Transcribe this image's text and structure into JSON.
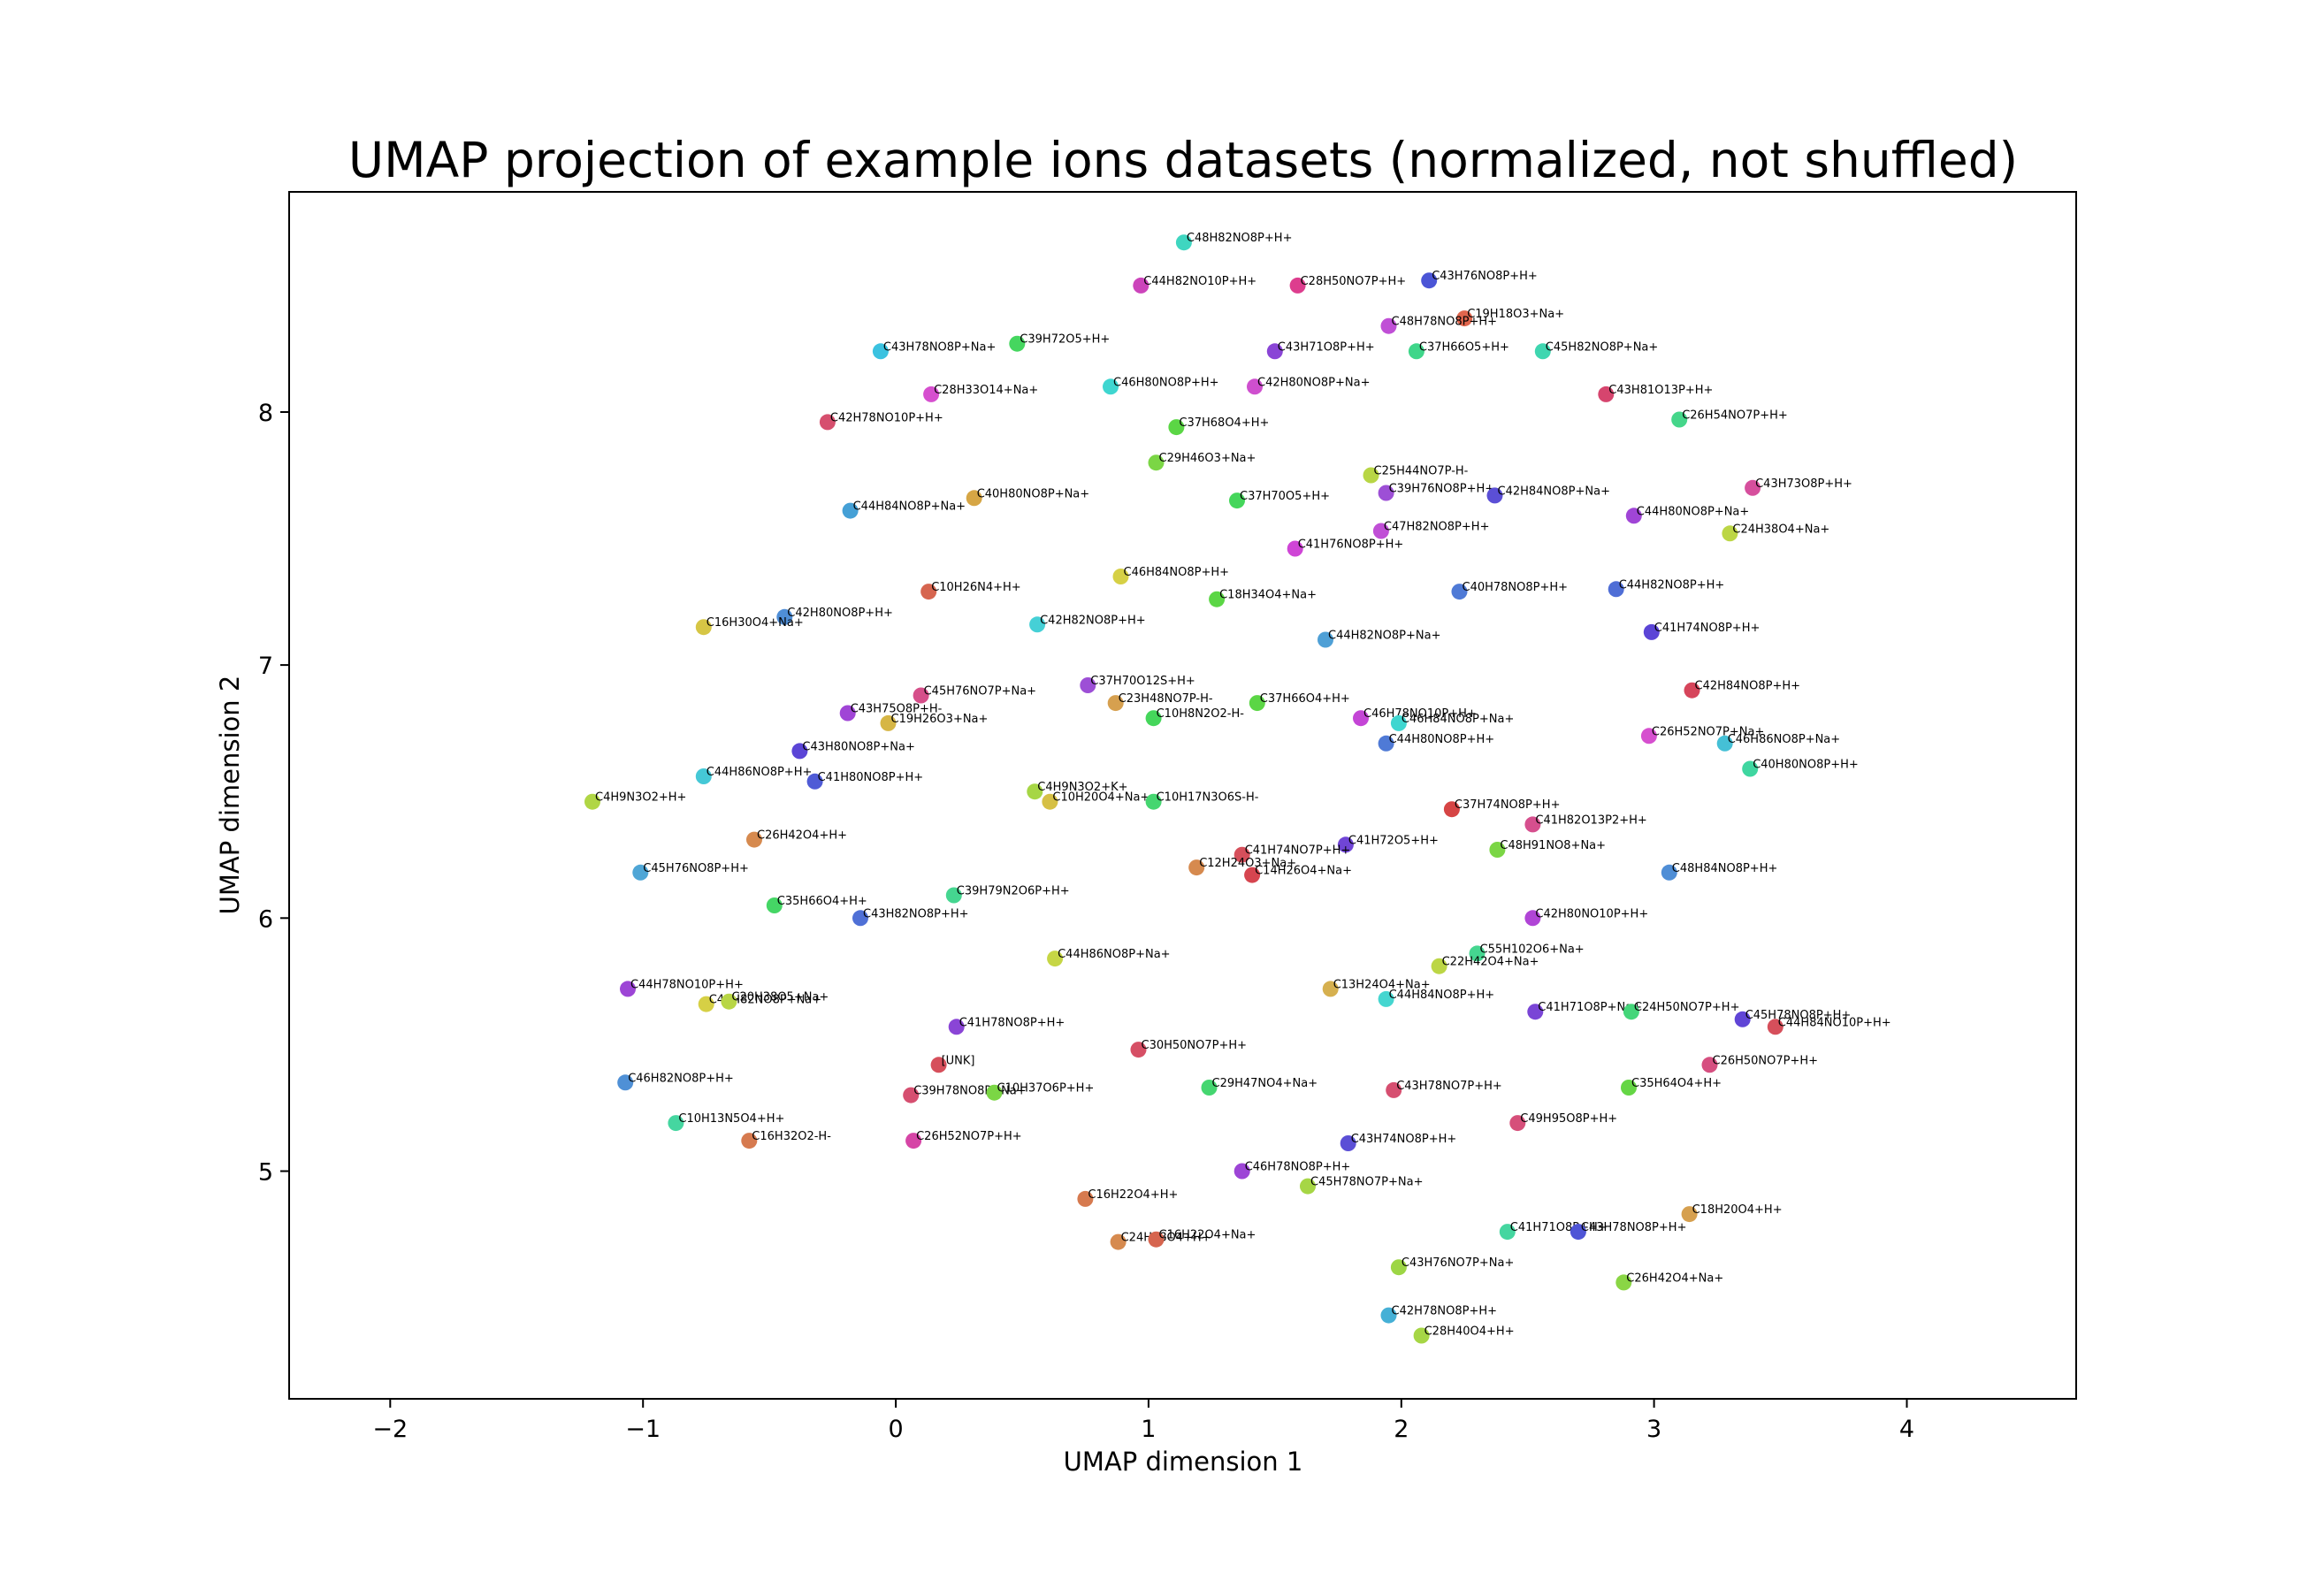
{
  "chart_data": {
    "type": "scatter",
    "title": "UMAP projection of example ions datasets (normalized, not shuffled)",
    "xlabel": "UMAP dimension 1",
    "ylabel": "UMAP dimension 2",
    "xlim": [
      -2.4,
      4.67
    ],
    "ylim": [
      4.1,
      8.87
    ],
    "xticks": [
      -2,
      -1,
      0,
      1,
      2,
      3,
      4
    ],
    "yticks": [
      5,
      6,
      7,
      8
    ],
    "xtick_labels": [
      "−2",
      "−1",
      "0",
      "1",
      "2",
      "3",
      "4"
    ],
    "ytick_labels": [
      "5",
      "6",
      "7",
      "8"
    ],
    "grid": false,
    "legend": "none",
    "points": [
      {
        "x": 1.14,
        "y": 8.67,
        "label": "C48H82NO8P+H+",
        "color": "#3fd6c0"
      },
      {
        "x": 0.97,
        "y": 8.5,
        "label": "C44H82NO10P+H+",
        "color": "#cc44bb"
      },
      {
        "x": 1.59,
        "y": 8.5,
        "label": "C28H50NO7P+H+",
        "color": "#dd3d8e"
      },
      {
        "x": 2.11,
        "y": 8.52,
        "label": "C43H76NO8P+H+",
        "color": "#4b55d6"
      },
      {
        "x": 2.25,
        "y": 8.37,
        "label": "C19H18O3+Na+",
        "color": "#e0664d"
      },
      {
        "x": 1.95,
        "y": 8.34,
        "label": "C48H78NO8P+H+",
        "color": "#c04fd6"
      },
      {
        "x": -0.06,
        "y": 8.24,
        "label": "C43H78NO8P+Na+",
        "color": "#3bc2e0"
      },
      {
        "x": 0.48,
        "y": 8.27,
        "label": "C39H72O5+H+",
        "color": "#45d65f"
      },
      {
        "x": 1.5,
        "y": 8.24,
        "label": "C43H71O8P+H+",
        "color": "#8a45d6"
      },
      {
        "x": 2.06,
        "y": 8.24,
        "label": "C37H66O5+H+",
        "color": "#3fd68a"
      },
      {
        "x": 2.56,
        "y": 8.24,
        "label": "C45H82NO8P+Na+",
        "color": "#3fd6b0"
      },
      {
        "x": 0.14,
        "y": 8.07,
        "label": "C28H33O14+Na+",
        "color": "#d64fcf"
      },
      {
        "x": 0.85,
        "y": 8.1,
        "label": "C46H80NO8P+H+",
        "color": "#3fd6d0"
      },
      {
        "x": 1.42,
        "y": 8.1,
        "label": "C42H80NO8P+Na+",
        "color": "#cf4fcf"
      },
      {
        "x": 2.81,
        "y": 8.07,
        "label": "C43H81O13P+H+",
        "color": "#d6456e"
      },
      {
        "x": -0.27,
        "y": 7.96,
        "label": "C42H78NO10P+H+",
        "color": "#d64f6e"
      },
      {
        "x": 1.11,
        "y": 7.94,
        "label": "C37H68O4+H+",
        "color": "#5bd645"
      },
      {
        "x": 3.1,
        "y": 7.97,
        "label": "C26H54NO7P+H+",
        "color": "#45d68a"
      },
      {
        "x": 1.03,
        "y": 7.8,
        "label": "C29H46O3+Na+",
        "color": "#7bd645"
      },
      {
        "x": 1.88,
        "y": 7.75,
        "label": "C25H44NO7P-H-",
        "color": "#b8d645"
      },
      {
        "x": 1.94,
        "y": 7.68,
        "label": "C39H76NO8P+H+",
        "color": "#9d4fd6"
      },
      {
        "x": 2.37,
        "y": 7.67,
        "label": "C42H84NO8P+Na+",
        "color": "#5b4fd6"
      },
      {
        "x": 3.39,
        "y": 7.7,
        "label": "C43H73O8P+H+",
        "color": "#d64f9d"
      },
      {
        "x": -0.18,
        "y": 7.61,
        "label": "C44H84NO8P+Na+",
        "color": "#45a0d6"
      },
      {
        "x": 0.31,
        "y": 7.66,
        "label": "C40H80NO8P+Na+",
        "color": "#d6a645"
      },
      {
        "x": 1.35,
        "y": 7.65,
        "label": "C37H70O5+H+",
        "color": "#45d65b"
      },
      {
        "x": 2.92,
        "y": 7.59,
        "label": "C44H80NO8P+Na+",
        "color": "#a045d6"
      },
      {
        "x": 1.92,
        "y": 7.53,
        "label": "C47H82NO8P+H+",
        "color": "#c04fd6"
      },
      {
        "x": 3.3,
        "y": 7.52,
        "label": "C24H38O4+Na+",
        "color": "#bcd645"
      },
      {
        "x": 1.58,
        "y": 7.46,
        "label": "C41H76NO8P+H+",
        "color": "#cf45d6"
      },
      {
        "x": 0.89,
        "y": 7.35,
        "label": "C46H84NO8P+H+",
        "color": "#d6d045"
      },
      {
        "x": 0.13,
        "y": 7.29,
        "label": "C10H26N4+H+",
        "color": "#d6654f"
      },
      {
        "x": 2.23,
        "y": 7.29,
        "label": "C40H78NO8P+H+",
        "color": "#4f7ad6"
      },
      {
        "x": 2.85,
        "y": 7.3,
        "label": "C44H82NO8P+H+",
        "color": "#4f6ed6"
      },
      {
        "x": 1.27,
        "y": 7.26,
        "label": "C18H34O4+Na+",
        "color": "#5bd645"
      },
      {
        "x": -0.44,
        "y": 7.19,
        "label": "C42H80NO8P+H+",
        "color": "#4f8ed6"
      },
      {
        "x": 0.56,
        "y": 7.16,
        "label": "C42H82NO8P+H+",
        "color": "#45d0d6"
      },
      {
        "x": -0.76,
        "y": 7.15,
        "label": "C16H30O4+Na+",
        "color": "#d6c645"
      },
      {
        "x": 1.7,
        "y": 7.1,
        "label": "C44H82NO8P+Na+",
        "color": "#4fa0d6"
      },
      {
        "x": 2.99,
        "y": 7.13,
        "label": "C41H74NO8P+H+",
        "color": "#5b45d6"
      },
      {
        "x": 0.76,
        "y": 6.92,
        "label": "C37H70O12S+H+",
        "color": "#9d4fd6"
      },
      {
        "x": 3.15,
        "y": 6.9,
        "label": "C42H84NO8P+H+",
        "color": "#d6455b"
      },
      {
        "x": 0.1,
        "y": 6.88,
        "label": "C45H76NO7P+Na+",
        "color": "#d64f8a"
      },
      {
        "x": 0.87,
        "y": 6.85,
        "label": "C23H48NO7P-H-",
        "color": "#d6a04f"
      },
      {
        "x": 1.43,
        "y": 6.85,
        "label": "C37H66O4+H+",
        "color": "#5bd645"
      },
      {
        "x": 1.84,
        "y": 6.79,
        "label": "C46H78NO10P+H+",
        "color": "#c445d6"
      },
      {
        "x": 1.02,
        "y": 6.79,
        "label": "C10H8N2O2-H-",
        "color": "#45d65b"
      },
      {
        "x": -0.19,
        "y": 6.81,
        "label": "C43H75O8P+H-",
        "color": "#a045d6"
      },
      {
        "x": -0.03,
        "y": 6.77,
        "label": "C19H26O3+Na+",
        "color": "#d6b645"
      },
      {
        "x": 1.99,
        "y": 6.77,
        "label": "C46H84NO8P+Na+",
        "color": "#3fd6d0"
      },
      {
        "x": 2.98,
        "y": 6.72,
        "label": "C26H52NO7P+Na+",
        "color": "#d64fcf"
      },
      {
        "x": 1.94,
        "y": 6.69,
        "label": "C44H80NO8P+H+",
        "color": "#4f7ad6"
      },
      {
        "x": 3.28,
        "y": 6.69,
        "label": "C46H86NO8P+Na+",
        "color": "#45c0d6"
      },
      {
        "x": -0.38,
        "y": 6.66,
        "label": "C43H80NO8P+Na+",
        "color": "#5b45d6"
      },
      {
        "x": 3.38,
        "y": 6.59,
        "label": "C40H80NO8P+H+",
        "color": "#3fd6a0"
      },
      {
        "x": -0.76,
        "y": 6.56,
        "label": "C44H86NO8P+H+",
        "color": "#45c8d6"
      },
      {
        "x": -0.32,
        "y": 6.54,
        "label": "C41H80NO8P+H+",
        "color": "#4f5bd6"
      },
      {
        "x": 0.55,
        "y": 6.5,
        "label": "C4H9N3O2+K+",
        "color": "#a6d645"
      },
      {
        "x": 0.61,
        "y": 6.46,
        "label": "C10H20O4+Na+",
        "color": "#d6c045"
      },
      {
        "x": 1.02,
        "y": 6.46,
        "label": "C10H17N3O6S-H-",
        "color": "#45d670"
      },
      {
        "x": -1.2,
        "y": 6.46,
        "label": "C4H9N3O2+H+",
        "color": "#b0d645"
      },
      {
        "x": 2.2,
        "y": 6.43,
        "label": "C37H74NO8P+H+",
        "color": "#d64545"
      },
      {
        "x": 2.52,
        "y": 6.37,
        "label": "C41H82O13P2+H+",
        "color": "#d64f8e"
      },
      {
        "x": -0.56,
        "y": 6.31,
        "label": "C26H42O4+H+",
        "color": "#d68a4f"
      },
      {
        "x": 1.78,
        "y": 6.29,
        "label": "C41H72O5+H+",
        "color": "#7045d6"
      },
      {
        "x": 2.38,
        "y": 6.27,
        "label": "C48H91NO8+Na+",
        "color": "#7bd645"
      },
      {
        "x": 1.37,
        "y": 6.25,
        "label": "C41H74NO7P+H+",
        "color": "#d64f5b"
      },
      {
        "x": 1.19,
        "y": 6.2,
        "label": "C12H24O3+Na+",
        "color": "#d68a4f"
      },
      {
        "x": 1.41,
        "y": 6.17,
        "label": "C14H26O4+Na+",
        "color": "#d6454f"
      },
      {
        "x": -1.01,
        "y": 6.18,
        "label": "C45H76NO8P+H+",
        "color": "#4fa6d6"
      },
      {
        "x": 3.06,
        "y": 6.18,
        "label": "C48H84NO8P+H+",
        "color": "#4f8ed6"
      },
      {
        "x": 0.23,
        "y": 6.09,
        "label": "C39H79N2O6P+H+",
        "color": "#45d690"
      },
      {
        "x": -0.48,
        "y": 6.05,
        "label": "C35H66O4+H+",
        "color": "#45d665"
      },
      {
        "x": -0.14,
        "y": 6.0,
        "label": "C43H82NO8P+H+",
        "color": "#4f70d6"
      },
      {
        "x": 2.52,
        "y": 6.0,
        "label": "C42H80NO10P+H+",
        "color": "#b045d6"
      },
      {
        "x": 0.63,
        "y": 5.84,
        "label": "C44H86NO8P+Na+",
        "color": "#c6d645"
      },
      {
        "x": 2.3,
        "y": 5.86,
        "label": "C55H102O6+Na+",
        "color": "#45d690"
      },
      {
        "x": 2.15,
        "y": 5.81,
        "label": "C22H42O4+Na+",
        "color": "#bcd645"
      },
      {
        "x": 1.72,
        "y": 5.72,
        "label": "C13H24O4+Na+",
        "color": "#d6b04f"
      },
      {
        "x": 1.94,
        "y": 5.68,
        "label": "C44H84NO8P+H+",
        "color": "#45d6d0"
      },
      {
        "x": -1.06,
        "y": 5.72,
        "label": "C44H78NO10P+H+",
        "color": "#9d45d6"
      },
      {
        "x": -0.75,
        "y": 5.66,
        "label": "C42H82NO8P+Na+",
        "color": "#d6d045"
      },
      {
        "x": -0.66,
        "y": 5.67,
        "label": "C20H38O5+Na+",
        "color": "#b8d645"
      },
      {
        "x": 2.53,
        "y": 5.63,
        "label": "C41H71O8P+Na+",
        "color": "#7a45d6"
      },
      {
        "x": 2.91,
        "y": 5.63,
        "label": "C24H50NO7P+H+",
        "color": "#45d67a"
      },
      {
        "x": 3.35,
        "y": 5.6,
        "label": "C45H78NO8P+H+",
        "color": "#6045d6"
      },
      {
        "x": 3.48,
        "y": 5.57,
        "label": "C44H84NO10P+H+",
        "color": "#d64f5b"
      },
      {
        "x": 0.24,
        "y": 5.57,
        "label": "C41H78NO8P+H+",
        "color": "#8a45d6"
      },
      {
        "x": 0.96,
        "y": 5.48,
        "label": "C30H50NO7P+H+",
        "color": "#d64f65"
      },
      {
        "x": 0.17,
        "y": 5.42,
        "label": "[UNK]",
        "color": "#d64f5b"
      },
      {
        "x": 3.22,
        "y": 5.42,
        "label": "C26H50NO7P+H+",
        "color": "#d64f80"
      },
      {
        "x": -1.07,
        "y": 5.35,
        "label": "C46H82NO8P+H+",
        "color": "#4f90d6"
      },
      {
        "x": 1.24,
        "y": 5.33,
        "label": "C29H47NO4+Na+",
        "color": "#45d670"
      },
      {
        "x": 1.97,
        "y": 5.32,
        "label": "C43H78NO7P+H+",
        "color": "#d64f70"
      },
      {
        "x": 2.9,
        "y": 5.33,
        "label": "C35H64O4+H+",
        "color": "#65d645"
      },
      {
        "x": 0.06,
        "y": 5.3,
        "label": "C39H78NO8P+Na+",
        "color": "#d64f70"
      },
      {
        "x": 0.39,
        "y": 5.31,
        "label": "C10H37O6P+H+",
        "color": "#7bd645"
      },
      {
        "x": -0.87,
        "y": 5.19,
        "label": "C10H13N5O4+H+",
        "color": "#45d6a0"
      },
      {
        "x": 2.46,
        "y": 5.19,
        "label": "C49H95O8P+H+",
        "color": "#d64f7a"
      },
      {
        "x": -0.58,
        "y": 5.12,
        "label": "C16H32O2-H-",
        "color": "#d67a4f"
      },
      {
        "x": 0.07,
        "y": 5.12,
        "label": "C26H52NO7P+H+",
        "color": "#d645a6"
      },
      {
        "x": 1.79,
        "y": 5.11,
        "label": "C43H74NO8P+H+",
        "color": "#5b4fd6"
      },
      {
        "x": 1.37,
        "y": 5.0,
        "label": "C46H78NO8P+H+",
        "color": "#9d45d6"
      },
      {
        "x": 1.63,
        "y": 4.94,
        "label": "C45H78NO7P+Na+",
        "color": "#a6d645"
      },
      {
        "x": 0.75,
        "y": 4.89,
        "label": "C16H22O4+H+",
        "color": "#d67a4f"
      },
      {
        "x": 3.14,
        "y": 4.83,
        "label": "C18H20O4+H+",
        "color": "#d6a04f"
      },
      {
        "x": 2.42,
        "y": 4.76,
        "label": "C41H71O8P+H+",
        "color": "#45d6a0"
      },
      {
        "x": 2.7,
        "y": 4.76,
        "label": "C43H78NO8P+H+",
        "color": "#4f55d6"
      },
      {
        "x": 0.88,
        "y": 4.72,
        "label": "C24H38O4+H+",
        "color": "#d68a4f"
      },
      {
        "x": 1.03,
        "y": 4.73,
        "label": "C16H22O4+Na+",
        "color": "#d6654f"
      },
      {
        "x": 1.99,
        "y": 4.62,
        "label": "C43H76NO7P+Na+",
        "color": "#9dd645"
      },
      {
        "x": 2.88,
        "y": 4.56,
        "label": "C26H42O4+Na+",
        "color": "#8ad645"
      },
      {
        "x": 1.95,
        "y": 4.43,
        "label": "C42H78NO8P+H+",
        "color": "#45b0d6"
      },
      {
        "x": 2.08,
        "y": 4.35,
        "label": "C28H40O4+H+",
        "color": "#a6d645"
      }
    ]
  }
}
